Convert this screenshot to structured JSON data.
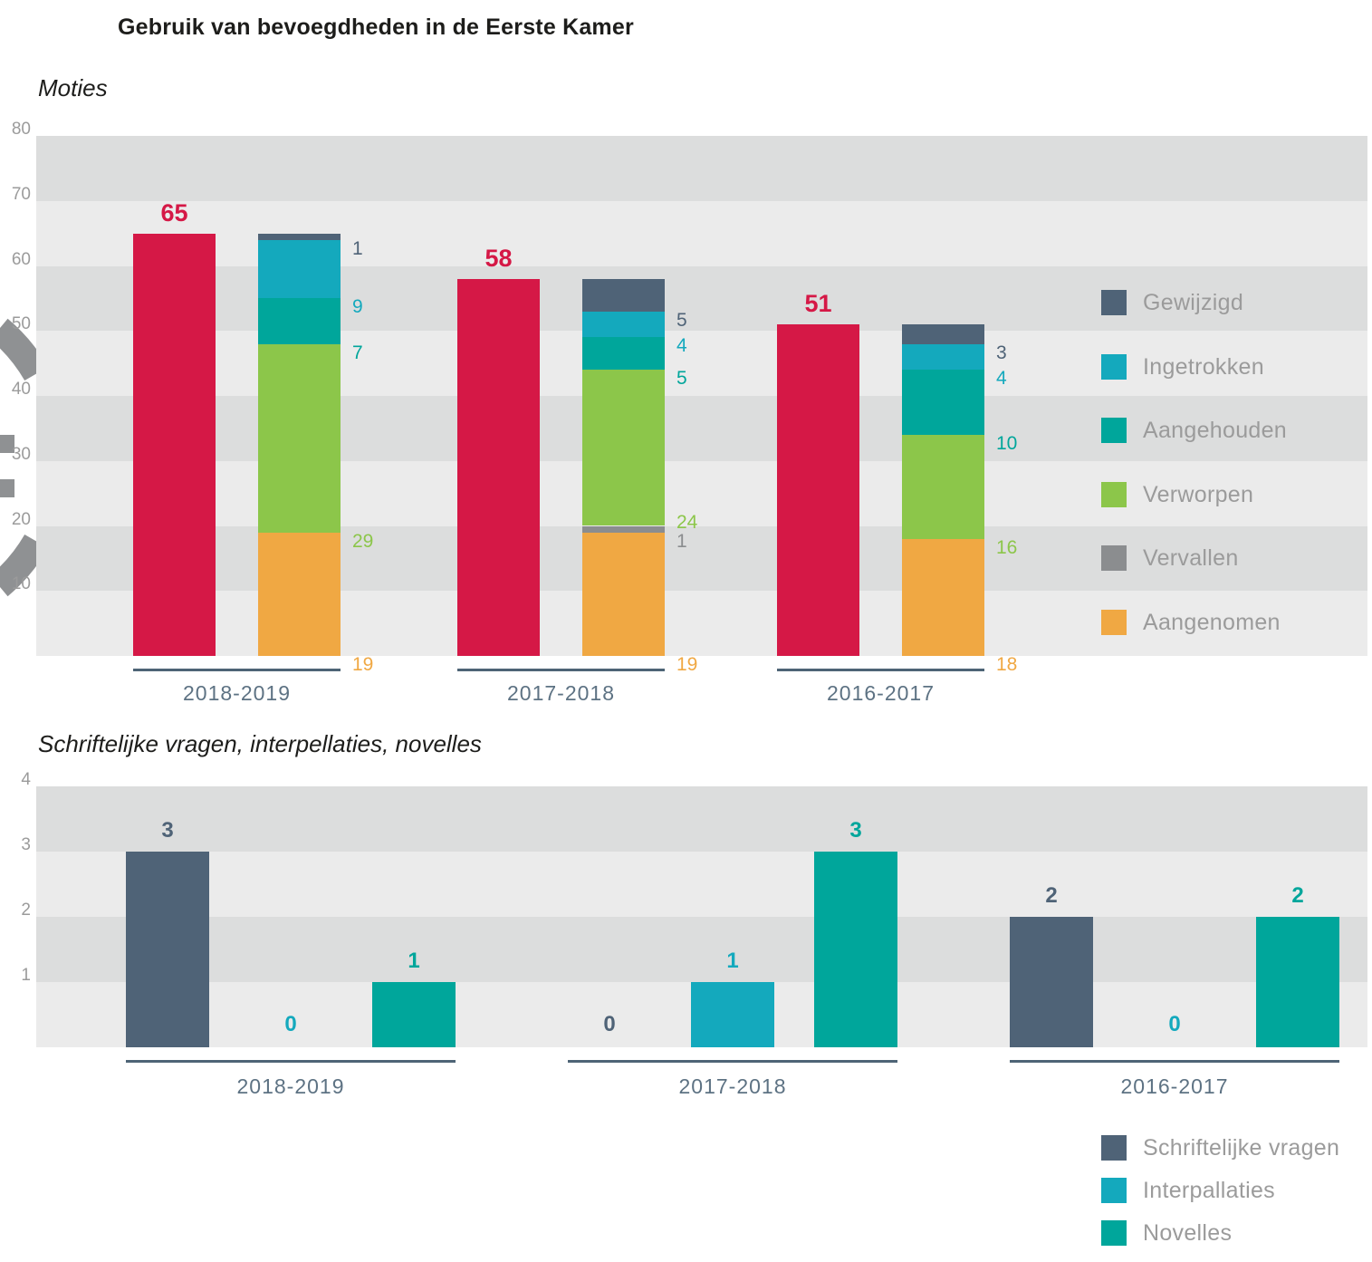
{
  "title": "Gebruik van bevoegdheden in de Eerste Kamer",
  "colors": {
    "total_bar": "#d51846",
    "band_dark": "#dcdddd",
    "band_light": "#ebebeb",
    "axis_text": "#9b9b9b",
    "category_text": "#5d7283",
    "underline": "#4e6476",
    "decoration_gray": "#8f9193",
    "title_text": "#1d1d1b",
    "legend_text": "#9b9b9b"
  },
  "chart_data": [
    {
      "type": "bar",
      "variant": "total-plus-stacked",
      "title": "Moties",
      "ylim": [
        0,
        80
      ],
      "yticks": [
        80,
        70,
        60,
        50,
        40,
        30,
        20,
        10
      ],
      "grid": "banded",
      "legend_position": "right",
      "categories": [
        "2018-2019",
        "2017-2018",
        "2016-2017"
      ],
      "totals": {
        "color": "#d51846",
        "values": [
          65,
          58,
          51
        ]
      },
      "series": [
        {
          "name": "Gewijzigd",
          "color": "#4f6377",
          "values": [
            1,
            5,
            3
          ]
        },
        {
          "name": "Ingetrokken",
          "color": "#14a9bd",
          "values": [
            9,
            4,
            4
          ]
        },
        {
          "name": "Aangehouden",
          "color": "#00a69b",
          "values": [
            7,
            5,
            10
          ]
        },
        {
          "name": "Verworpen",
          "color": "#8cc64a",
          "values": [
            29,
            24,
            16
          ]
        },
        {
          "name": "Vervallen",
          "color": "#8b8d8f",
          "values": [
            0,
            1,
            0
          ]
        },
        {
          "name": "Aangenomen",
          "color": "#f0a843",
          "values": [
            19,
            19,
            18
          ]
        }
      ]
    },
    {
      "type": "bar",
      "variant": "grouped",
      "title": "Schriftelijke vragen, interpellaties, novelles",
      "ylim": [
        0,
        4
      ],
      "yticks": [
        4,
        3,
        2,
        1
      ],
      "grid": "banded",
      "legend_position": "bottom-right",
      "categories": [
        "2018-2019",
        "2017-2018",
        "2016-2017"
      ],
      "series": [
        {
          "name": "Schriftelijke vragen",
          "color": "#4f6377",
          "values": [
            3,
            0,
            2
          ]
        },
        {
          "name": "Interpallaties",
          "color": "#14a9bd",
          "values": [
            0,
            1,
            0
          ]
        },
        {
          "name": "Novelles",
          "color": "#00a69b",
          "values": [
            1,
            3,
            2
          ]
        }
      ]
    }
  ]
}
